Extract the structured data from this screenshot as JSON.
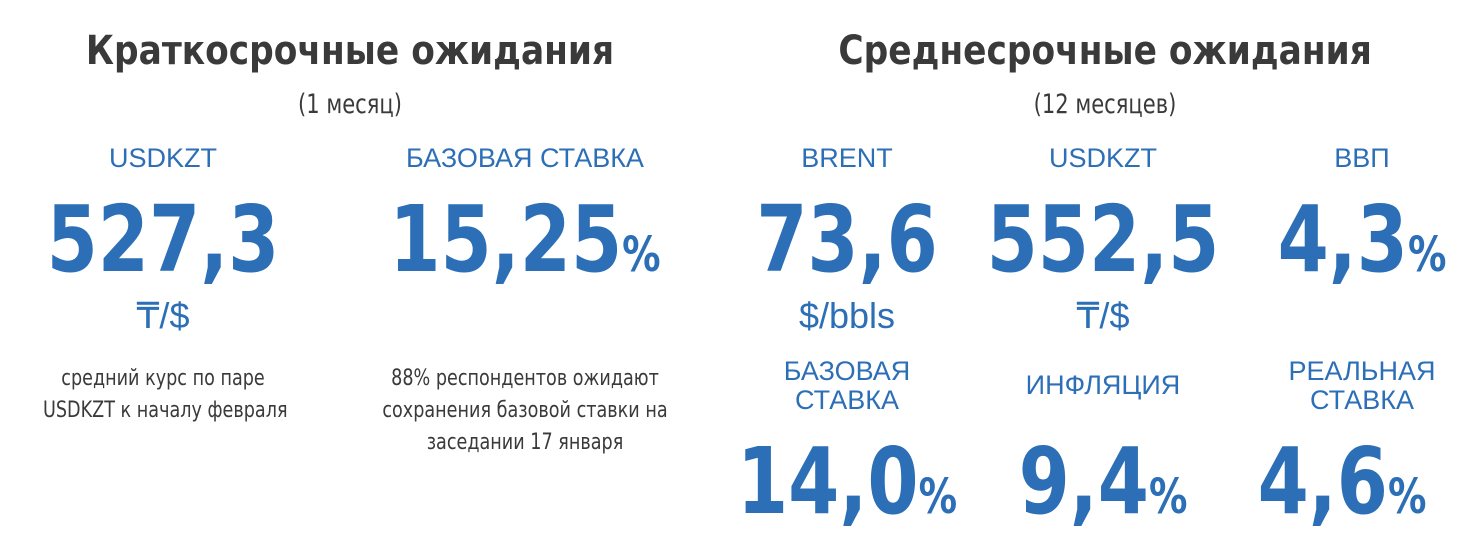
{
  "short_term": {
    "title": "Краткосрочные ожидания",
    "period": "(1 месяц)",
    "usdkzt": {
      "label": "USDKZT",
      "value": "527,3",
      "unit": "₸/$",
      "note_line1": "средний курс по паре",
      "note_line2": "USDKZT к началу февраля"
    },
    "base_rate": {
      "label": "БАЗОВАЯ СТАВКА",
      "value": "15,25",
      "suffix": "%",
      "note_line1": "88% респондентов ожидают",
      "note_line2": "сохранения базовой ставки на",
      "note_line3": "заседании 17 января"
    }
  },
  "medium_term": {
    "title": "Среднесрочные ожидания",
    "period": "(12 месяцев)",
    "brent": {
      "label": "BRENT",
      "value": "73,6",
      "unit": "$/bbls"
    },
    "usdkzt": {
      "label": "USDKZT",
      "value": "552,5",
      "unit": "₸/$"
    },
    "gdp": {
      "label": "ВВП",
      "value": "4,3",
      "suffix": "%"
    },
    "base_rate": {
      "label_line1": "БАЗОВАЯ",
      "label_line2": "СТАВКА",
      "value": "14,0",
      "suffix": "%"
    },
    "inflation": {
      "label": "ИНФЛЯЦИЯ",
      "value": "9,4",
      "suffix": "%"
    },
    "real_rate": {
      "label_line1": "РЕАЛЬНАЯ",
      "label_line2": "СТАВКА",
      "value": "4,6",
      "suffix": "%"
    }
  },
  "colors": {
    "accent": "#2c6fb7",
    "text": "#3a3a3a"
  }
}
